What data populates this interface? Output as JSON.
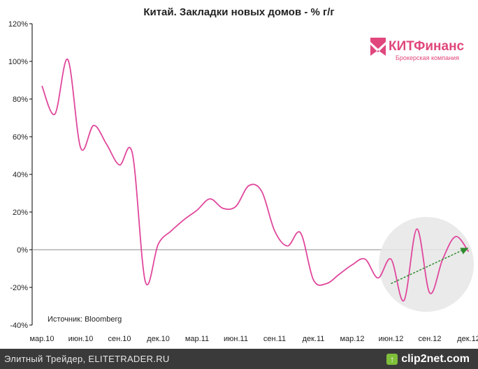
{
  "chart_data": {
    "type": "line",
    "title": "Китай. Закладки новых домов - % г/г",
    "ylim": [
      -40,
      120
    ],
    "y_ticks": [
      "120%",
      "100%",
      "80%",
      "60%",
      "40%",
      "20%",
      "0%",
      "-20%",
      "-40%"
    ],
    "x_tick_labels": [
      "мар.10",
      "июн.10",
      "сен.10",
      "дек.10",
      "мар.11",
      "июн.11",
      "сен.11",
      "дек.11",
      "мар.12",
      "июн.12",
      "сен.12",
      "дек.12"
    ],
    "source_note": "Источник: Bloomberg",
    "x": [
      "2010-03",
      "2010-04",
      "2010-05",
      "2010-06",
      "2010-07",
      "2010-08",
      "2010-09",
      "2010-10",
      "2010-11",
      "2010-12",
      "2011-01",
      "2011-02",
      "2011-03",
      "2011-04",
      "2011-05",
      "2011-06",
      "2011-07",
      "2011-08",
      "2011-09",
      "2011-10",
      "2011-11",
      "2011-12",
      "2012-01",
      "2012-02",
      "2012-03",
      "2012-04",
      "2012-05",
      "2012-06",
      "2012-07",
      "2012-08",
      "2012-09",
      "2012-10",
      "2012-11",
      "2012-12"
    ],
    "series": [
      {
        "color": "#e0479c",
        "values": [
          87,
          72,
          101,
          54,
          66,
          56,
          45,
          51,
          -17,
          3,
          10,
          16,
          21,
          27,
          22,
          23,
          34,
          31,
          10,
          2,
          9,
          -16,
          -18,
          -13,
          -8,
          -5,
          -15,
          -5,
          -27,
          11,
          -23,
          -5,
          7,
          -1
        ]
      }
    ],
    "annotation": {
      "type": "trend-arrow",
      "from": [
        "2012-06",
        -18
      ],
      "to": [
        "2012-12",
        1
      ],
      "color": "#2e8b2e",
      "highlight": "grey circle around last 7 months"
    },
    "grid": false,
    "legend": "none"
  },
  "logo": {
    "brand": "КИТФинанс",
    "tagline": "Брокерская компания",
    "color": "#e0477c"
  },
  "footer": {
    "text": "Элитный Трейдер, ELITETRADER.RU",
    "watermark": "clip2net.com",
    "watermark_icon": "upload-arrow-icon"
  }
}
